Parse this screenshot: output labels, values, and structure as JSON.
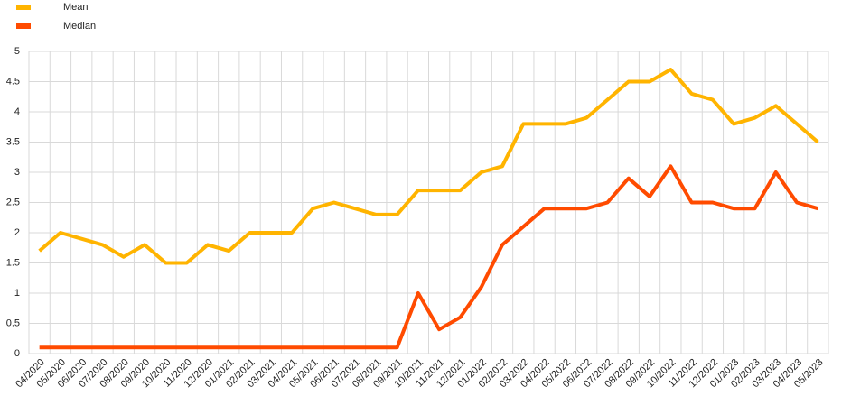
{
  "chart_data": {
    "type": "line",
    "categories": [
      "04/2020",
      "05/2020",
      "06/2020",
      "07/2020",
      "08/2020",
      "09/2020",
      "10/2020",
      "11/2020",
      "12/2020",
      "01/2021",
      "02/2021",
      "03/2021",
      "04/2021",
      "05/2021",
      "06/2021",
      "07/2021",
      "08/2021",
      "09/2021",
      "10/2021",
      "11/2021",
      "12/2021",
      "01/2022",
      "02/2022",
      "03/2022",
      "04/2022",
      "05/2022",
      "06/2022",
      "07/2022",
      "08/2022",
      "09/2022",
      "10/2022",
      "11/2022",
      "12/2022",
      "01/2023",
      "02/2023",
      "03/2023",
      "04/2023",
      "05/2023"
    ],
    "series": [
      {
        "name": "Mean",
        "color": "#ffb400",
        "values": [
          1.7,
          2.0,
          1.9,
          1.8,
          1.6,
          1.8,
          1.5,
          1.5,
          1.8,
          1.7,
          2.0,
          2.0,
          2.0,
          2.4,
          2.5,
          2.4,
          2.3,
          2.3,
          2.7,
          2.7,
          2.7,
          3.0,
          3.1,
          3.8,
          3.8,
          3.8,
          3.9,
          4.2,
          4.5,
          4.5,
          4.7,
          4.3,
          4.2,
          3.8,
          3.9,
          4.1,
          3.8,
          3.5
        ]
      },
      {
        "name": "Median",
        "color": "#ff4b00",
        "values": [
          0.1,
          0.1,
          0.1,
          0.1,
          0.1,
          0.1,
          0.1,
          0.1,
          0.1,
          0.1,
          0.1,
          0.1,
          0.1,
          0.1,
          0.1,
          0.1,
          0.1,
          0.1,
          1.0,
          0.4,
          0.6,
          1.1,
          1.8,
          2.1,
          2.4,
          2.4,
          2.4,
          2.5,
          2.9,
          2.6,
          3.1,
          2.5,
          2.5,
          2.4,
          2.4,
          3.0,
          2.5,
          2.4
        ]
      }
    ],
    "ylim": [
      0,
      5
    ],
    "yticks": [
      0,
      0.5,
      1,
      1.5,
      2,
      2.5,
      3,
      3.5,
      4,
      4.5,
      5
    ],
    "grid": true,
    "legend": "top-left"
  }
}
